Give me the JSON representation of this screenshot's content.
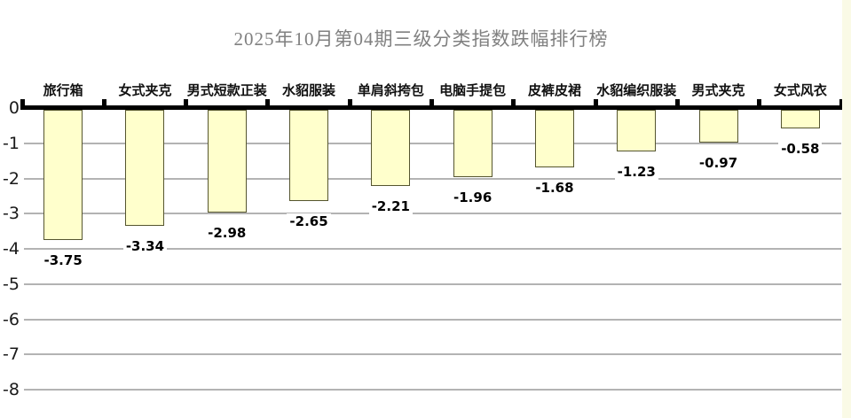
{
  "page": {
    "background": "#FFFFFF",
    "right_strip_color": "#FAFAE6"
  },
  "chart_data": {
    "type": "bar",
    "title": "2025年10月第04期三级分类指数跌幅排行榜",
    "title_color": "#808080",
    "categories": [
      "旅行箱",
      "女式夹克",
      "男式短款正装",
      "水貂服装",
      "单肩斜挎包",
      "电脑手提包",
      "皮裤皮裙",
      "水貂编织服装",
      "男式夹克",
      "女式风衣"
    ],
    "values": [
      -3.75,
      -3.34,
      -2.98,
      -2.65,
      -2.21,
      -1.96,
      -1.68,
      -1.23,
      -0.97,
      -0.58
    ],
    "value_labels": [
      "-3.75",
      "-3.34",
      "-2.98",
      "-2.65",
      "-2.21",
      "-1.96",
      "-1.68",
      "-1.23",
      "-0.97",
      "-0.58"
    ],
    "xlabel": "",
    "ylabel": "",
    "yticks": [
      0,
      -1,
      -2,
      -3,
      -4,
      -5,
      -6,
      -7,
      -8
    ],
    "ylim": [
      -8,
      0
    ],
    "grid": true,
    "legend": "none",
    "bar_fill": "#FFFFCC",
    "bar_border": "#55552F",
    "axis_color": "#000000",
    "grid_color": "#B3B3B3"
  }
}
